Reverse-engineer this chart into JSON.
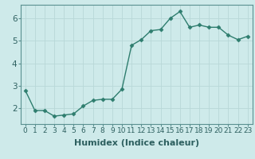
{
  "x": [
    0,
    1,
    2,
    3,
    4,
    5,
    6,
    7,
    8,
    9,
    10,
    11,
    12,
    13,
    14,
    15,
    16,
    17,
    18,
    19,
    20,
    21,
    22,
    23
  ],
  "y": [
    2.8,
    1.9,
    1.9,
    1.65,
    1.7,
    1.75,
    2.1,
    2.35,
    2.4,
    2.4,
    2.85,
    4.8,
    5.05,
    5.45,
    5.5,
    6.0,
    6.3,
    5.6,
    5.7,
    5.6,
    5.6,
    5.25,
    5.05,
    5.2
  ],
  "line_color": "#2e7d6e",
  "marker": "D",
  "markersize": 2.5,
  "linewidth": 1.0,
  "xlabel": "Humidex (Indice chaleur)",
  "xlim": [
    -0.5,
    23.5
  ],
  "ylim": [
    1.3,
    6.6
  ],
  "yticks": [
    2,
    3,
    4,
    5,
    6
  ],
  "bg_color": "#ceeaea",
  "grid_color": "#b8d8d8",
  "xlabel_fontsize": 8,
  "tick_fontsize": 6.5
}
